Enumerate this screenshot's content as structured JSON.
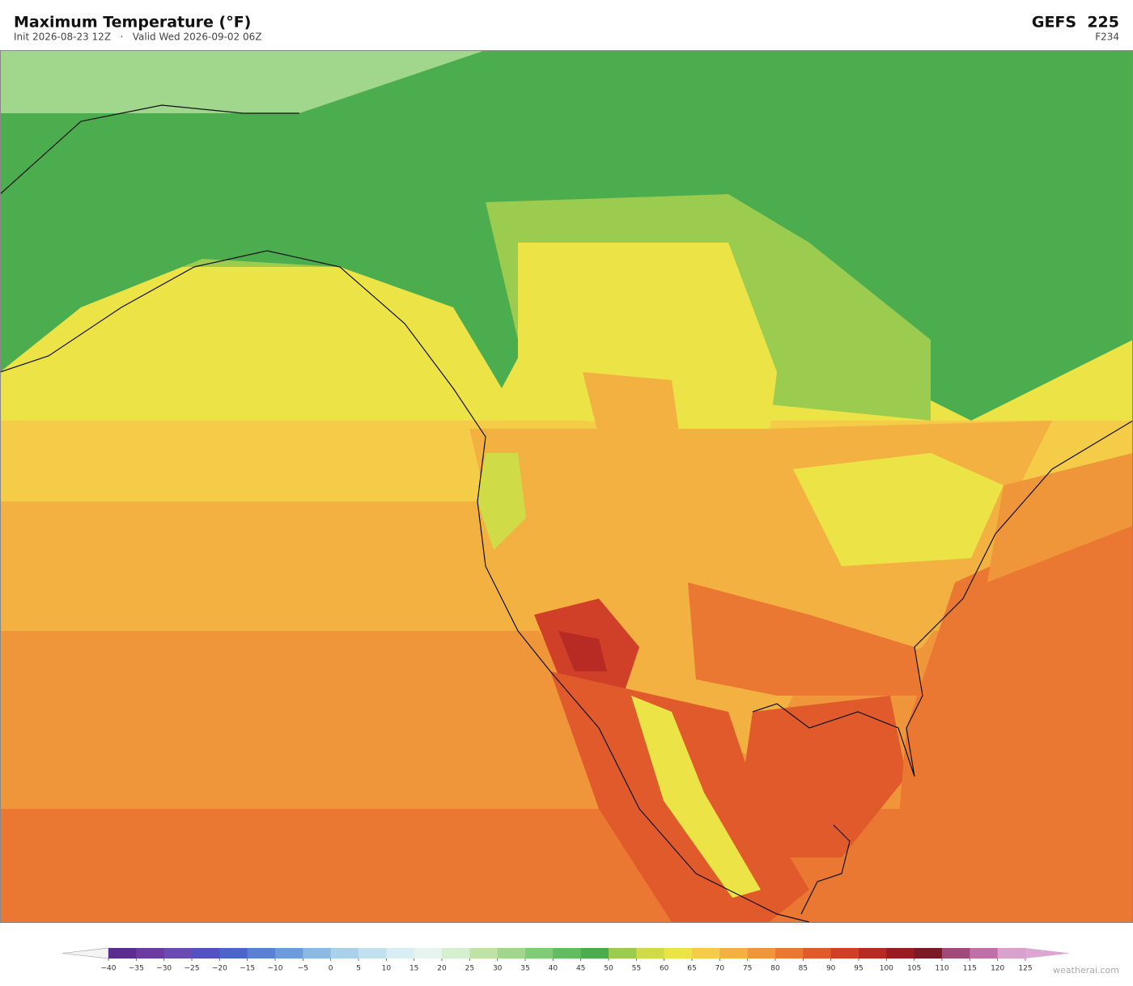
{
  "header": {
    "title": "Maximum Temperature  (°F)",
    "subtitle": "Init 2026-08-23 12Z   ·   Valid Wed 2026-09-02 06Z",
    "model": "GEFS  225",
    "forecast_hour": "F234"
  },
  "colorbar": {
    "ticks": [
      {
        "value": -40,
        "label": "−40"
      },
      {
        "value": -35,
        "label": "−35"
      },
      {
        "value": -30,
        "label": "−30"
      },
      {
        "value": -25,
        "label": "−25"
      },
      {
        "value": -20,
        "label": "−20"
      },
      {
        "value": -15,
        "label": "−15"
      },
      {
        "value": -10,
        "label": "−10"
      },
      {
        "value": -5,
        "label": "−5"
      },
      0,
      5,
      10,
      15,
      20,
      25,
      30,
      35,
      40,
      45,
      50,
      55,
      60,
      65,
      70,
      75,
      80,
      85,
      90,
      95,
      100,
      105,
      110,
      115,
      120,
      125
    ],
    "colors": [
      "#5b2d8e",
      "#6c3b9f",
      "#6a4bb1",
      "#5252c2",
      "#4b65ca",
      "#5b82d2",
      "#6c9cd9",
      "#8cb9e1",
      "#a9d1ea",
      "#c2e1f0",
      "#d8eef4",
      "#e5f4ee",
      "#d6efcf",
      "#bfe3a6",
      "#a0d78c",
      "#80cb76",
      "#62bc60",
      "#4cad4f",
      "#9bcb4f",
      "#d0dc47",
      "#ece447",
      "#f4cc47",
      "#f2b140",
      "#f0963a",
      "#ea7832",
      "#e05a2c",
      "#d04028",
      "#b82a24",
      "#9a1c20",
      "#7a1a22",
      "#a04a7a",
      "#c070a8",
      "#d9a2cd"
    ],
    "extend_low_color": "#f4f4f4",
    "extend_high_color": "#dda6d2"
  },
  "footer": {
    "credit": "weatherai.com"
  }
}
